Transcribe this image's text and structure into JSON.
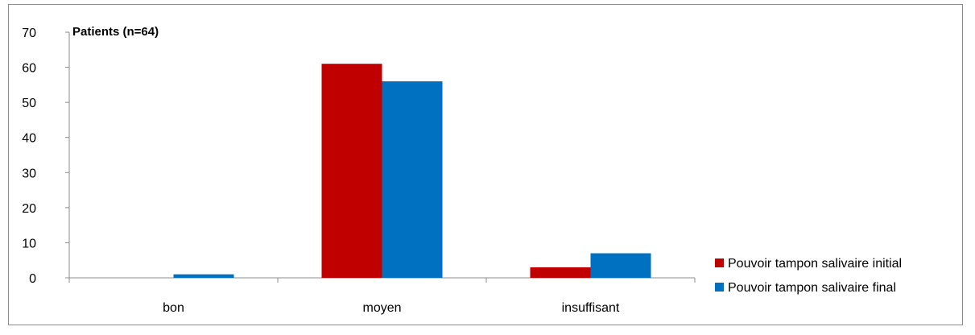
{
  "chart_data": {
    "type": "bar",
    "title": "",
    "xlabel": "",
    "ylabel": "Patients (n=64)",
    "categories": [
      "bon",
      "moyen",
      "insuffisant"
    ],
    "series": [
      {
        "name": "Pouvoir tampon salivaire initial",
        "values": [
          0,
          61,
          3
        ],
        "color": "#c00000"
      },
      {
        "name": "Pouvoir tampon salivaire final",
        "values": [
          1,
          56,
          7
        ],
        "color": "#0070c0"
      }
    ],
    "ylim": [
      0,
      70
    ],
    "yticks": [
      0,
      10,
      20,
      30,
      40,
      50,
      60,
      70
    ],
    "grid": false,
    "legend_position": "bottom-right"
  }
}
